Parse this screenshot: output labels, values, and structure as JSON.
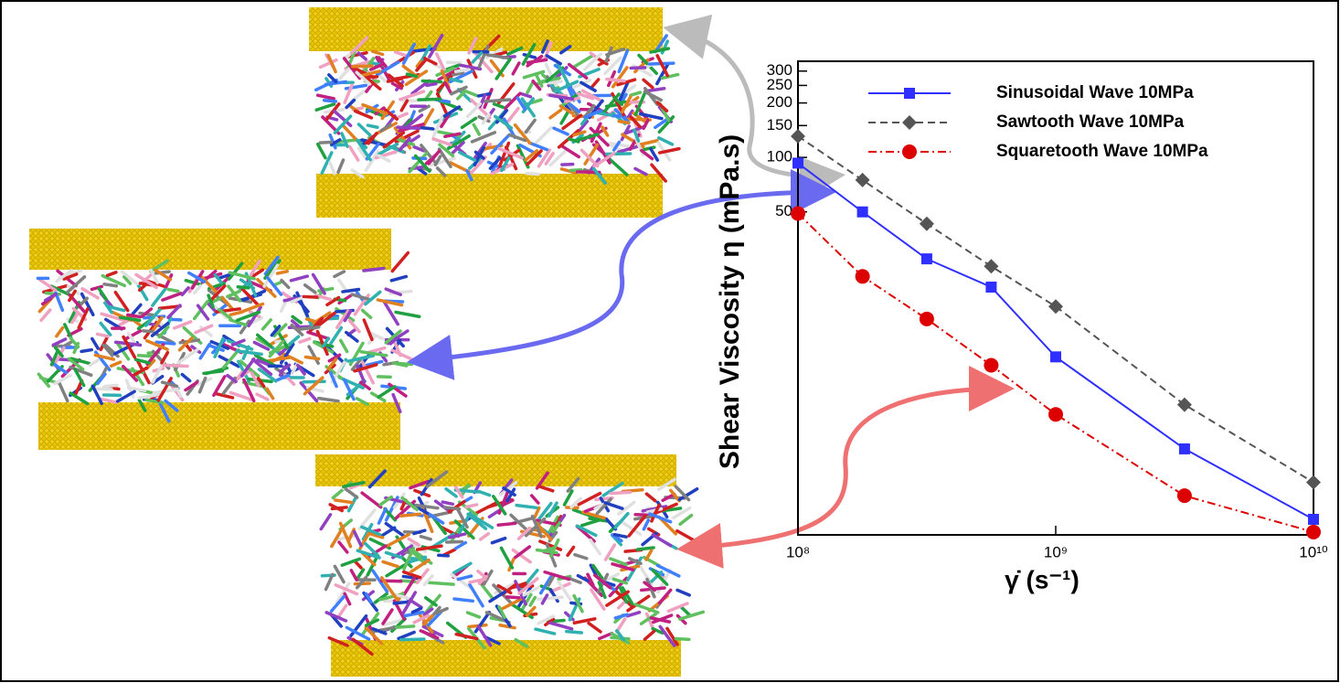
{
  "chart_data": {
    "type": "line",
    "y_label": "Shear Viscosity η (mPa.s)",
    "x_label": "γ̇ (s⁻¹)",
    "x": [
      100000000,
      178000000,
      316000000,
      562000000,
      1000000000,
      3160000000,
      10000000000
    ],
    "series": [
      {
        "name": "Sinusoidal Wave 10MPa",
        "color": "#2f2fff",
        "marker": "square",
        "dash": "solid",
        "values": [
          93,
          50,
          27.5,
          19.2,
          7.9,
          2.45,
          1.0
        ]
      },
      {
        "name": "Sawtooth Wave 10MPa",
        "color": "#555555",
        "marker": "diamond",
        "dash": "dashed",
        "values": [
          131,
          75,
          43,
          25,
          15,
          4.3,
          1.6
        ]
      },
      {
        "name": "Squaretooth Wave 10MPa",
        "color": "#dd0000",
        "marker": "circle",
        "dash": "dashdot",
        "values": [
          49,
          22,
          12.8,
          7.1,
          3.8,
          1.35,
          0.85
        ]
      }
    ],
    "xlim": [
      100000000,
      10000000000
    ],
    "xticks": [
      {
        "value": 100000000,
        "label": "10⁸"
      },
      {
        "value": 1000000000,
        "label": "10⁹"
      },
      {
        "value": 10000000000,
        "label": "10¹⁰"
      }
    ],
    "ylim": [
      0.82,
      340
    ],
    "yticks": [
      50,
      100,
      150,
      200,
      250,
      300
    ],
    "xlog": true,
    "ylog": true,
    "legend": "upper right"
  }
}
